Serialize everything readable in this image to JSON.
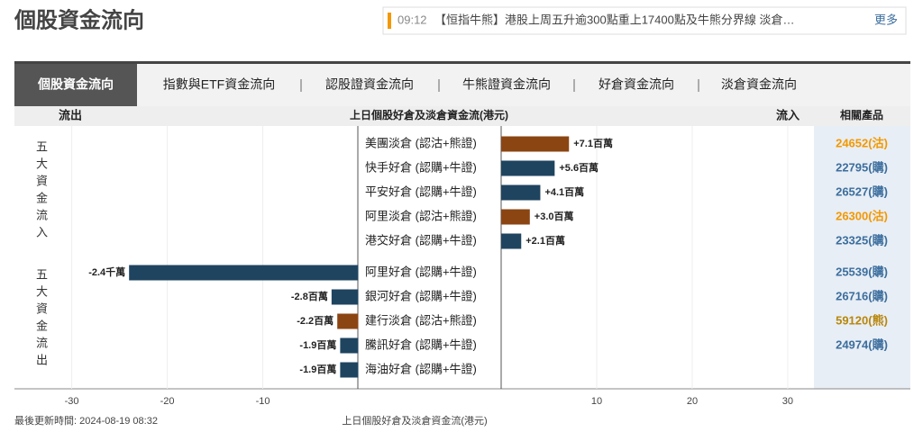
{
  "header": {
    "title": "個股資金流向"
  },
  "news": {
    "time": "09:12",
    "text": "【恒指牛熊】港股上周五升逾300點重上17400點及牛熊分界線 淡倉…",
    "more": "更多"
  },
  "tabs": [
    "個股資金流向",
    "指數與ETF資金流向",
    "認股證資金流向",
    "牛熊證資金流向",
    "好倉資金流向",
    "淡倉資金流向"
  ],
  "columns": {
    "outflow": "流出",
    "inflow": "流入",
    "products": "相關產品"
  },
  "footer": {
    "updated": "最後更新時間: 2024-08-19 08:32"
  },
  "chart_data": {
    "type": "bar",
    "orientation": "horizontal",
    "title": "上日個股好倉及淡倉資金流(港元)",
    "x_label": "上日個股好倉及淡倉資金流(港元)",
    "groups": [
      "五大資金流入",
      "五大資金流出"
    ],
    "categories": [
      "美團淡倉 (認沽+熊證)",
      "快手好倉 (認購+牛證)",
      "平安好倉 (認購+牛證)",
      "阿里淡倉 (認沽+熊證)",
      "港交好倉 (認購+牛證)",
      "阿里好倉 (認購+牛證)",
      "銀河好倉 (認購+牛證)",
      "建行淡倉 (認沽+熊證)",
      "騰訊好倉 (認購+牛證)",
      "海油好倉 (認購+牛證)"
    ],
    "values": [
      7.1,
      5.6,
      4.1,
      3.0,
      2.1,
      -24,
      -2.8,
      -2.2,
      -1.9,
      -1.9
    ],
    "value_labels": [
      "+7.1百萬",
      "+5.6百萬",
      "+4.1百萬",
      "+3.0百萬",
      "+2.1百萬",
      "-2.4千萬",
      "-2.8百萬",
      "-2.2百萬",
      "-1.9百萬",
      "-1.9百萬"
    ],
    "colors": [
      "#8b4513",
      "#1f4460",
      "#1f4460",
      "#8b4513",
      "#1f4460",
      "#1f4460",
      "#1f4460",
      "#8b4513",
      "#1f4460",
      "#1f4460"
    ],
    "products": [
      "24652(沽)",
      "22795(購)",
      "26527(購)",
      "26300(沽)",
      "23325(購)",
      "25539(購)",
      "26716(購)",
      "59120(熊)",
      "24974(購)",
      null
    ],
    "product_colors": [
      "#f39800",
      "#3c6e9e",
      "#3c6e9e",
      "#f39800",
      "#3c6e9e",
      "#3c6e9e",
      "#3c6e9e",
      "#b8860b",
      "#3c6e9e",
      null
    ],
    "xlim": [
      -36,
      32.6
    ],
    "xticks": [
      -30,
      -20,
      -10,
      10,
      20,
      30
    ],
    "grid": true
  }
}
